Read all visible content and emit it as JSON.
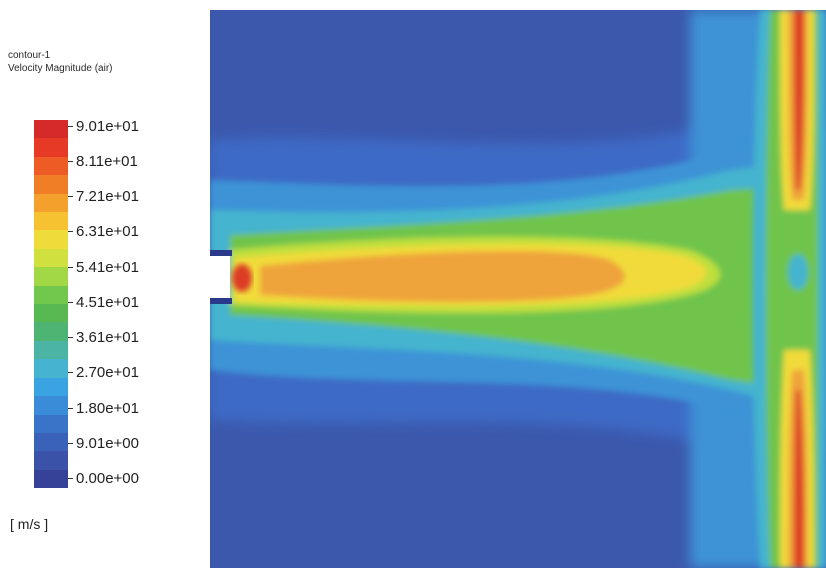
{
  "legend": {
    "title": "contour-1",
    "subtitle": "Velocity Magnitude (air)",
    "unit": "[ m/s ]",
    "ticks": [
      "9.01e+01",
      "8.11e+01",
      "7.21e+01",
      "6.31e+01",
      "5.41e+01",
      "4.51e+01",
      "3.61e+01",
      "2.70e+01",
      "1.80e+01",
      "9.01e+00",
      "0.00e+00"
    ],
    "color_segments": [
      "#d42a2a",
      "#e63a26",
      "#ec5c24",
      "#f07e26",
      "#f4a02c",
      "#f6c232",
      "#eedc3a",
      "#d0e03e",
      "#a2d846",
      "#72c84c",
      "#58b852",
      "#4eb474",
      "#4cb4a4",
      "#46b4d0",
      "#3aa4e2",
      "#3a8cd8",
      "#3a74c8",
      "#3a62b8",
      "#3a52a8",
      "#354298"
    ],
    "range": [
      0.0,
      90.1
    ]
  },
  "contour": {
    "field_colors": {
      "background": "#3b58ad",
      "low": "#3e6bc6",
      "low_mid": "#3c93d6",
      "cyan": "#45b4cf",
      "green": "#6fc44b",
      "yellow_green": "#bfdf3e",
      "yellow": "#f1db3a",
      "orange": "#efa33b",
      "red": "#dc3a28"
    }
  }
}
